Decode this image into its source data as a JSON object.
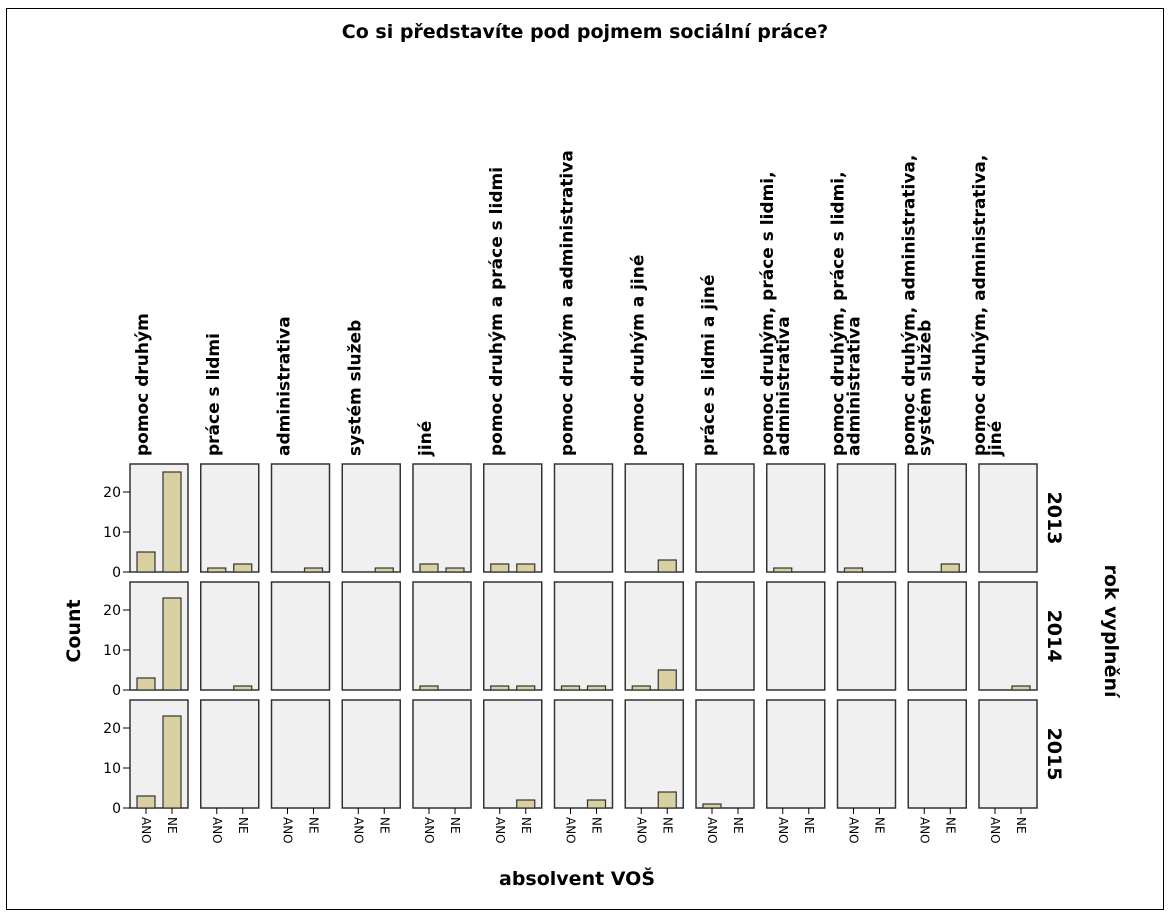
{
  "chart_data": {
    "type": "bar",
    "title": "Co si představíte pod pojmem sociální práce?",
    "xlabel": "absolvent VOŠ",
    "ylabel": "Count",
    "row_variable": "rok vyplnění",
    "x_categories": [
      "ANO",
      "NE"
    ],
    "ylim": [
      0,
      27
    ],
    "yticks": [
      0,
      10,
      20
    ],
    "panel_color": "#f0f0f0",
    "bar_color": "#d8d0a0",
    "columns": [
      "pomoc druhým",
      "práce s lidmi",
      "administrativa",
      "systém služeb",
      "jiné",
      "pomoc druhým a práce s lidmi",
      "pomoc druhým a administrativa",
      "pomoc druhým a jiné",
      "práce s lidmi a jiné",
      "pomoc druhým, práce s lidmi, administrativa",
      "pomoc druhým, práce s lidmi, administrativa",
      "pomoc druhým, administrativa, systém služeb",
      "pomoc druhým, administrativa, jiné"
    ],
    "rows": [
      {
        "year": "2013",
        "values": [
          [
            5,
            25
          ],
          [
            1,
            2
          ],
          [
            0,
            1
          ],
          [
            0,
            1
          ],
          [
            2,
            1
          ],
          [
            2,
            2
          ],
          [
            0,
            0
          ],
          [
            0,
            3
          ],
          [
            0,
            0
          ],
          [
            1,
            0
          ],
          [
            1,
            0
          ],
          [
            0,
            2
          ],
          [
            0,
            0
          ]
        ]
      },
      {
        "year": "2014",
        "values": [
          [
            3,
            23
          ],
          [
            0,
            1
          ],
          [
            0,
            0
          ],
          [
            0,
            0
          ],
          [
            1,
            0
          ],
          [
            1,
            1
          ],
          [
            1,
            1
          ],
          [
            1,
            5
          ],
          [
            0,
            0
          ],
          [
            0,
            0
          ],
          [
            0,
            0
          ],
          [
            0,
            0
          ],
          [
            0,
            1
          ]
        ]
      },
      {
        "year": "2015",
        "values": [
          [
            3,
            23
          ],
          [
            0,
            0
          ],
          [
            0,
            0
          ],
          [
            0,
            0
          ],
          [
            0,
            0
          ],
          [
            0,
            2
          ],
          [
            0,
            2
          ],
          [
            0,
            4
          ],
          [
            1,
            0
          ],
          [
            0,
            0
          ],
          [
            0,
            0
          ],
          [
            0,
            0
          ],
          [
            0,
            0
          ]
        ]
      }
    ]
  }
}
